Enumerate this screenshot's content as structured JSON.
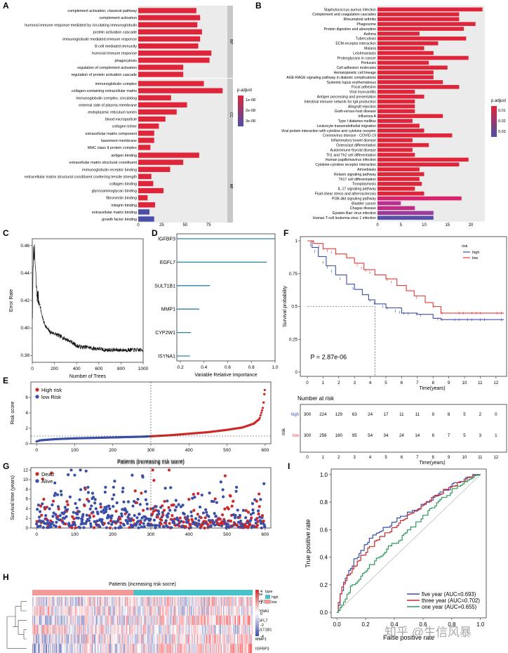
{
  "figure": {
    "panel_letters": [
      "A",
      "B",
      "C",
      "D",
      "E",
      "F",
      "G",
      "H",
      "I"
    ]
  },
  "chart_data": [
    {
      "panel": "A",
      "type": "bar",
      "orientation": "horizontal",
      "groups": [
        {
          "name": "BP",
          "categories": [
            "complement activation, classical pathway",
            "complement activation",
            "humoral immune response mediated by circulating immunoglobulin",
            "protein activation cascade",
            "immunoglobulin mediated immune response",
            "B cell mediated immunity",
            "humoral immune response",
            "phagocytosis",
            "regulation of complement activation",
            "regulation of protein activation cascade"
          ],
          "values": [
            62,
            66,
            63,
            68,
            66,
            64,
            78,
            76,
            48,
            48
          ],
          "colors": [
            "#e0253a",
            "#e0253a",
            "#e0253a",
            "#e0253a",
            "#e0253a",
            "#e0253a",
            "#e0253a",
            "#e0253a",
            "#e0253a",
            "#e0253a"
          ]
        },
        {
          "name": "CC",
          "categories": [
            "immunoglobulin complex",
            "collagen-containing extracellular matrix",
            "immunoglobulin complex, circulating",
            "external side of plasma membrane",
            "endoplasmic reticulum lumen",
            "blood microparticle",
            "collagen trimer",
            "extracellular matrix component",
            "basement membrane",
            "MHC class II protein complex"
          ],
          "values": [
            70,
            90,
            35,
            52,
            41,
            29,
            22,
            17,
            17,
            13
          ],
          "colors": [
            "#e0253a",
            "#e0253a",
            "#e0253a",
            "#e0253a",
            "#e0253a",
            "#e0253a",
            "#e0253a",
            "#e0253a",
            "#e0253a",
            "#e0253a"
          ]
        },
        {
          "name": "MF",
          "categories": [
            "antigen binding",
            "extracellular matrix structural constituent",
            "immunoglobulin receptor binding",
            "extracellular matrix structural constituent conferring tensile strength",
            "collagen binding",
            "glycosaminoglycan binding",
            "fibronectin binding",
            "integrin binding",
            "extracellular matrix binding",
            "growth factor binding"
          ],
          "values": [
            65,
            48,
            34,
            14,
            16,
            27,
            10,
            18,
            12,
            17
          ],
          "colors": [
            "#e0253a",
            "#e0253a",
            "#e0253a",
            "#e0253a",
            "#e0253a",
            "#e0253a",
            "#e0253a",
            "#e0253a",
            "#4a4fa8",
            "#4a4fa8"
          ]
        }
      ],
      "xticks": [
        0,
        25,
        50,
        75
      ],
      "xlim": [
        0,
        95
      ],
      "legend": {
        "title": "p.adjust",
        "labels": [
          "1e-08",
          "2e-08",
          "3e-08"
        ],
        "placement": "right"
      }
    },
    {
      "panel": "B",
      "type": "bar",
      "orientation": "horizontal",
      "categories": [
        "Staphylococcus aureus infection",
        "Complement and coagulation cascades",
        "Rheumatoid arthritis",
        "Phagosome",
        "Protein digestion and absorption",
        "Asthma",
        "Tuberculosis",
        "ECM-receptor interaction",
        "Malaria",
        "Leishmaniasis",
        "Proteoglycans in cancer",
        "Pertussis",
        "Cell adhesion molecules",
        "Hematopoietic cell lineage",
        "AGE-RAGE signaling pathway in diabetic complications",
        "Systemic lupus erythematosus",
        "Focal adhesion",
        "Viral myocarditis",
        "Antigen processing and presentation",
        "Intestinal immune network for IgA production",
        "Allograft rejection",
        "Graft-versus-host disease",
        "Influenza A",
        "Type I diabetes mellitus",
        "Leukocyte transendothelial migration",
        "Viral protein interaction with cytokine and cytokine receptor",
        "Coronavirus disease - COVID-19",
        "Inflammatory bowel disease",
        "Osteoclast differentiation",
        "Autoimmune thyroid disease",
        "Th1 and Th2 cell differentiation",
        "Human papillomavirus infection",
        "Cytokine-cytokine receptor interaction",
        "Amoebiasis",
        "Relaxin signaling pathway",
        "Th17 cell differentiation",
        "Toxoplasmosis",
        "IL-17 signaling pathway",
        "Fluid shear stress and atherosclerosis",
        "PI3K-Akt signaling pathway",
        "Bladder cancer",
        "Chagas disease",
        "Epstein-Barr virus infection",
        "Human T-cell leukemia virus 1 infection"
      ],
      "values": [
        22.5,
        17.5,
        17.5,
        21,
        18.5,
        9,
        19,
        13,
        10,
        12,
        19.5,
        11,
        15,
        12,
        12,
        14,
        17.5,
        8,
        10,
        8,
        8,
        8,
        14,
        7.5,
        9,
        10,
        16,
        7.5,
        11,
        7.5,
        8,
        19.5,
        17.5,
        9,
        10,
        9,
        9.5,
        8,
        10,
        18,
        5,
        8,
        12,
        12
      ],
      "colors": [
        "#e0253a",
        "#e0253a",
        "#e0253a",
        "#e0253a",
        "#e0253a",
        "#e0253a",
        "#e0253a",
        "#e0253a",
        "#e0253a",
        "#e0253a",
        "#e0253a",
        "#e0253a",
        "#e0253a",
        "#e0253a",
        "#e0253a",
        "#e0253a",
        "#e0253a",
        "#e0253a",
        "#e0253a",
        "#e0253a",
        "#e0253a",
        "#e0253a",
        "#e0253a",
        "#e0253a",
        "#e0253a",
        "#e0253a",
        "#e0253a",
        "#e0253a",
        "#e0253a",
        "#e0253a",
        "#e0253a",
        "#e0253a",
        "#e0253a",
        "#e0253a",
        "#e0253a",
        "#e0253a",
        "#e0253a",
        "#e0253a",
        "#e0253a",
        "#d8236e",
        "#b8308f",
        "#c02c84",
        "#9a3c99",
        "#5a4fa8"
      ],
      "xticks": [
        0,
        5,
        10,
        15,
        20
      ],
      "xlim": [
        0,
        23
      ],
      "legend": {
        "title": "p.adjust",
        "labels": [
          "0.01",
          "0.02",
          "0.03"
        ],
        "placement": "right"
      }
    },
    {
      "panel": "C",
      "type": "line",
      "x_control": [
        1,
        10,
        20,
        30,
        40,
        60,
        80,
        100,
        130,
        160,
        200,
        250,
        300,
        350,
        400,
        450,
        500,
        550,
        600,
        650,
        700,
        750,
        800,
        850,
        900,
        950,
        1000
      ],
      "y_control": [
        0.41,
        0.455,
        0.455,
        0.44,
        0.425,
        0.42,
        0.412,
        0.405,
        0.4,
        0.397,
        0.396,
        0.394,
        0.392,
        0.39,
        0.387,
        0.386,
        0.386,
        0.385,
        0.385,
        0.384,
        0.384,
        0.384,
        0.384,
        0.384,
        0.384,
        0.384,
        0.384
      ],
      "noise_seed": 7,
      "xticks": [
        0,
        200,
        400,
        600,
        800,
        1000
      ],
      "yticks": [
        0.38,
        0.4,
        0.42,
        0.44,
        0.46
      ],
      "xlim": [
        0,
        1000
      ],
      "ylim": [
        0.375,
        0.465
      ],
      "xlabel": "Number of Trees",
      "ylabel": "Error Rate"
    },
    {
      "panel": "D",
      "type": "bar",
      "orientation": "horizontal",
      "style": "lollipop",
      "categories": [
        "IGFBP3",
        "EGFL7",
        "SULT1B1",
        "MMP1",
        "CYP2W1",
        "ISYNA1"
      ],
      "values": [
        1.0,
        0.93,
        0.45,
        0.36,
        0.29,
        0.28
      ],
      "xticks": [
        0.2,
        0.4,
        0.6,
        0.8,
        1.0
      ],
      "xlim": [
        0.17,
        1.0
      ],
      "xlabel": "Variable Relative Importance",
      "bar_color": "#2e7fa8"
    },
    {
      "panel": "F",
      "type": "line",
      "series": [
        {
          "name": "high",
          "color": "#3f4fa8",
          "x": [
            0,
            0.3,
            0.7,
            1.2,
            1.8,
            2.5,
            3.0,
            3.5,
            3.9,
            4.3,
            5.0,
            6.0,
            7.0,
            8.0,
            8.5,
            12.5
          ],
          "y": [
            1.0,
            0.95,
            0.88,
            0.81,
            0.74,
            0.67,
            0.63,
            0.59,
            0.55,
            0.52,
            0.49,
            0.45,
            0.44,
            0.41,
            0.4,
            0.4
          ]
        },
        {
          "name": "low",
          "color": "#e53a3a",
          "x": [
            0,
            0.4,
            1.0,
            1.8,
            2.5,
            3.0,
            3.6,
            4.3,
            5.0,
            5.7,
            6.3,
            6.8,
            7.5,
            8.0,
            8.5,
            12.5
          ],
          "y": [
            1.0,
            0.98,
            0.94,
            0.9,
            0.87,
            0.83,
            0.78,
            0.74,
            0.71,
            0.66,
            0.62,
            0.58,
            0.53,
            0.5,
            0.45,
            0.45
          ]
        }
      ],
      "p_value": "P = 2.87e-06",
      "xticks": [
        0,
        1,
        2,
        3,
        4,
        5,
        6,
        7,
        8,
        9,
        10,
        11,
        12
      ],
      "yticks": [
        0,
        0.25,
        0.5,
        0.75,
        1
      ],
      "xlim": [
        0,
        12.5
      ],
      "ylim": [
        0,
        1
      ],
      "xlabel": "Time(years)",
      "ylabel": "Survival probability",
      "legend": {
        "title": "risk",
        "labels": [
          "high",
          "low"
        ],
        "placement": "top-right"
      },
      "risk_table": {
        "title": "Number at risk",
        "ylabel": "risk",
        "xlabel": "Time(years)",
        "rows": [
          {
            "name": "high",
            "color": "#3f4fa8",
            "values": [
              "300",
              "224",
              "129",
              "63",
              "24",
              "17",
              "11",
              "11",
              "9",
              "8",
              "5",
              "2",
              "0"
            ]
          },
          {
            "name": "low",
            "color": "#e53a3a",
            "values": [
              "300",
              "256",
              "160",
              "95",
              "54",
              "34",
              "24",
              "14",
              "8",
              "7",
              "5",
              "3",
              "1"
            ]
          }
        ]
      }
    },
    {
      "panel": "E",
      "type": "scatter",
      "series": [
        {
          "name": "High risk",
          "color": "#cc2a2a"
        },
        {
          "name": "low Risk",
          "color": "#3a4ea8"
        }
      ],
      "n_points": 600,
      "cutoff_index": 300,
      "cutoff_score": 1.0,
      "curve_control": {
        "x": [
          0,
          10,
          50,
          100,
          200,
          280,
          300,
          350,
          400,
          450,
          500,
          540,
          570,
          585,
          595,
          600
        ],
        "y": [
          0.3,
          0.45,
          0.6,
          0.7,
          0.82,
          0.92,
          0.97,
          1.1,
          1.3,
          1.5,
          1.8,
          2.1,
          2.6,
          3.2,
          4.8,
          7.5
        ]
      },
      "xticks": [
        0,
        100,
        200,
        300,
        400,
        500,
        600
      ],
      "yticks": [
        0,
        2,
        4,
        6
      ],
      "xlim": [
        -15,
        615
      ],
      "ylim": [
        0,
        8
      ],
      "xlabel": "Patients (increasing risk socre)",
      "ylabel": "Risk score"
    },
    {
      "panel": "G",
      "type": "scatter",
      "series": [
        {
          "name": "Dead",
          "color": "#cc2a2a"
        },
        {
          "name": "Alive",
          "color": "#3a4ea8"
        }
      ],
      "n_points": 600,
      "dead_fraction_low_risk": 0.18,
      "dead_fraction_high_risk": 0.42,
      "max_time_years": 12,
      "noise_seed": 11,
      "cutoff_index": 300,
      "xticks": [
        0,
        100,
        200,
        300,
        400,
        500,
        600
      ],
      "yticks": [
        0,
        2,
        4,
        6,
        8,
        10,
        12
      ],
      "xlim": [
        -15,
        615
      ],
      "ylim": [
        0,
        12.5
      ],
      "xlabel": "Patients (increasing risk socre)",
      "ylabel": "Survival time (years)"
    },
    {
      "panel": "H",
      "type": "heatmap",
      "rows": [
        "CYP2W1",
        "ISYNA1",
        "EGFL7",
        "SULT1B1",
        "MMP1",
        "IGFBP3"
      ],
      "n_cols": 300,
      "cutoff_col_fraction": 0.5,
      "row_trend": [
        0.3,
        -0.3,
        0.8,
        -0.3,
        0.6,
        0.9
      ],
      "noise_seed": 23,
      "colorbar_ticks": [
        4,
        2,
        0,
        -2,
        -4
      ],
      "type_legend": {
        "title": "type",
        "labels": [
          "high",
          "low"
        ],
        "colors": [
          "#48c1c9",
          "#f29a9a"
        ]
      },
      "annotation_label": "type",
      "colors": {
        "low": "#3a4ea8",
        "mid": "#ffffff",
        "high": "#d22a2a"
      }
    },
    {
      "panel": "I",
      "type": "line",
      "series": [
        {
          "name": "five year (AUC=0.693)",
          "color": "#3a4ea8",
          "x": [
            0,
            0.02,
            0.05,
            0.08,
            0.12,
            0.17,
            0.22,
            0.28,
            0.35,
            0.42,
            0.5,
            0.58,
            0.66,
            0.74,
            0.82,
            0.9,
            0.96,
            1.0
          ],
          "y": [
            0,
            0.12,
            0.22,
            0.3,
            0.38,
            0.45,
            0.52,
            0.57,
            0.62,
            0.67,
            0.72,
            0.77,
            0.83,
            0.88,
            0.93,
            0.97,
            0.99,
            1.0
          ]
        },
        {
          "name": "three year (AUC=0.702)",
          "color": "#cc2a2a",
          "x": [
            0,
            0.01,
            0.03,
            0.06,
            0.1,
            0.15,
            0.2,
            0.27,
            0.34,
            0.42,
            0.5,
            0.58,
            0.66,
            0.74,
            0.82,
            0.9,
            0.96,
            1.0
          ],
          "y": [
            0,
            0.08,
            0.17,
            0.24,
            0.31,
            0.38,
            0.44,
            0.51,
            0.57,
            0.63,
            0.7,
            0.76,
            0.82,
            0.88,
            0.93,
            0.97,
            0.99,
            1.0
          ]
        },
        {
          "name": "one year (AUC=0.655)",
          "color": "#2a9a5a",
          "x": [
            0,
            0.02,
            0.05,
            0.09,
            0.14,
            0.2,
            0.27,
            0.34,
            0.42,
            0.5,
            0.58,
            0.66,
            0.74,
            0.82,
            0.9,
            0.96,
            1.0
          ],
          "y": [
            0,
            0.04,
            0.1,
            0.17,
            0.24,
            0.31,
            0.38,
            0.45,
            0.52,
            0.59,
            0.67,
            0.75,
            0.83,
            0.9,
            0.95,
            0.99,
            1.0
          ]
        }
      ],
      "xticks": [
        0.0,
        0.2,
        0.4,
        0.6,
        0.8,
        1.0
      ],
      "yticks": [
        0.0,
        0.2,
        0.4,
        0.6,
        0.8,
        1.0
      ],
      "xlim": [
        -0.04,
        1.04
      ],
      "ylim": [
        -0.04,
        1.04
      ],
      "xlabel": "False positive rate",
      "ylabel": "True positive rate",
      "legend": {
        "placement": "bottom-right"
      }
    }
  ],
  "watermark": "知乎 @生信风暴"
}
